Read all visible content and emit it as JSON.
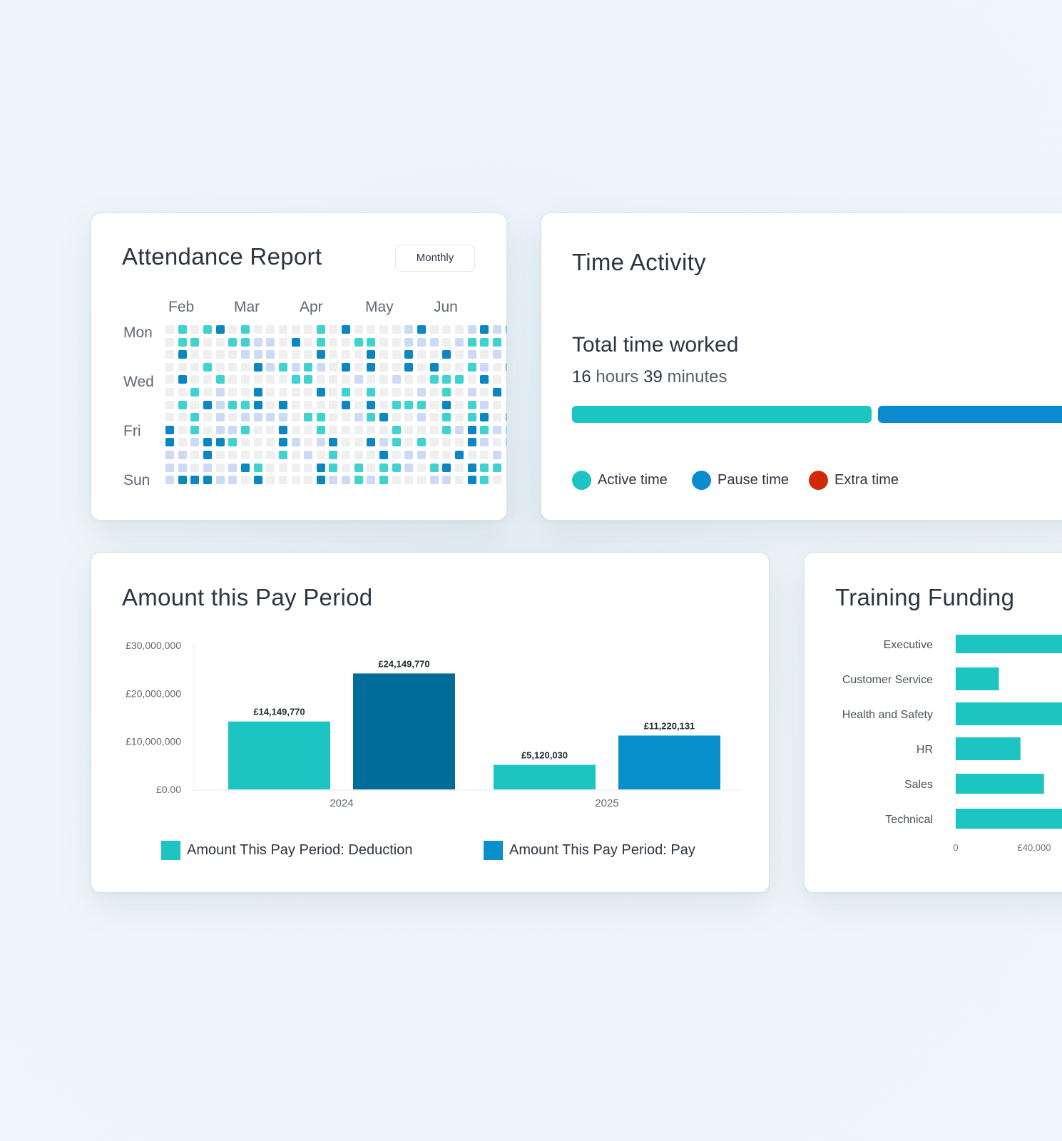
{
  "attendance": {
    "title": "Attendance Report",
    "period_button": "Monthly",
    "months": [
      "Feb",
      "Mar",
      "Apr",
      "May",
      "Jun"
    ],
    "days": [
      "Mon",
      "Wed",
      "Fri",
      "Sun"
    ],
    "levels": {
      "0": "#efefef",
      "1": "#cddaf6",
      "2": "#3fd3cf",
      "3": "#0a86c3"
    },
    "rows": [
      "0202302000002030000130001313",
      "0220022110302002200111012220",
      "0300001110003000300300301010",
      "0002000312121030300303002103",
      "0300200000220001001002220301",
      "0020100300003020200010201030",
      "0203122303000030302220302101",
      "0020101111022001230010202303",
      "3020112003002000002000213212",
      "3013320003101300312020003102",
      "1103000002010200030110030010",
      "1101013200003202022102303220",
      "1333110300003112120001103200"
    ]
  },
  "time_activity": {
    "title": "Time Activity",
    "subtitle": "Total time worked",
    "hours": "16",
    "hours_label": "hours",
    "minutes": "39",
    "minutes_label": "minutes",
    "legend": [
      {
        "label": "Active time",
        "color": "#1cc4c2"
      },
      {
        "label": "Pause time",
        "color": "#0a8bd0"
      },
      {
        "label": "Extra time",
        "color": "#d12a07"
      }
    ]
  },
  "pay_period": {
    "title": "Amount this Pay Period",
    "chart_data": {
      "type": "bar",
      "categories": [
        "2024",
        "2025"
      ],
      "series": [
        {
          "name": "Amount This Pay Period: Deduction",
          "color": "#1cc4c2",
          "values": [
            14149770,
            5120030
          ],
          "labels": [
            "£14,149,770",
            "£5,120,030"
          ]
        },
        {
          "name": "Amount This Pay Period: Pay",
          "colors": [
            "#026c99",
            "#0890cc"
          ],
          "color": "#0890cc",
          "values": [
            24149770,
            11220131
          ],
          "labels": [
            "£24,149,770",
            "£11,220,131"
          ]
        }
      ],
      "y_ticks": [
        "£30,000,000",
        "£20,000,000",
        "£10,000,000",
        "£0.00"
      ],
      "ylim": [
        0,
        30000000
      ],
      "legend_placement": "bottom"
    }
  },
  "training_funding": {
    "title": "Training Funding",
    "chart_data": {
      "type": "bar",
      "orientation": "horizontal",
      "color": "#1cc4c2",
      "categories": [
        "Executive",
        "Customer Service",
        "Health and Safety",
        "HR",
        "Sales",
        "Technical"
      ],
      "values": [
        60000,
        22000,
        60000,
        33000,
        45000,
        60000
      ],
      "x_ticks": [
        "0",
        "£40,000"
      ]
    }
  }
}
